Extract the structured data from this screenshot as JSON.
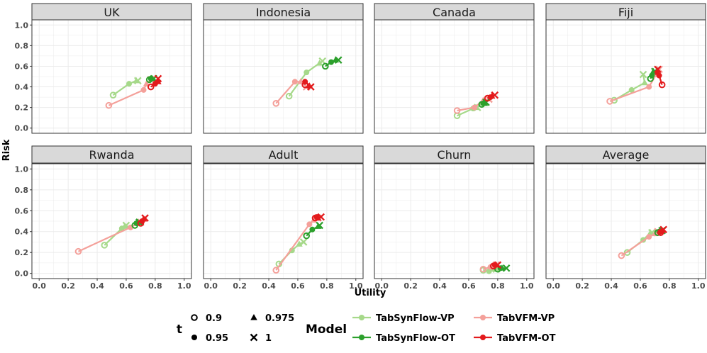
{
  "chart_data": {
    "type": "line",
    "xlabel": "Utility",
    "ylabel": "Risk",
    "xlim": [
      -0.05,
      1.05
    ],
    "ylim": [
      -0.05,
      1.05
    ],
    "x_ticks": [
      "0.0",
      "0.2",
      "0.4",
      "0.6",
      "0.8",
      "1.0"
    ],
    "y_ticks": [
      "0.0",
      "0.2",
      "0.4",
      "0.6",
      "0.8",
      "1.0"
    ],
    "t_values": [
      "0.9",
      "0.95",
      "0.975",
      "1"
    ],
    "legend": {
      "t_title": "t",
      "model_title": "Model",
      "t_entries": [
        {
          "label": "0.9",
          "shape": "open-circle"
        },
        {
          "label": "0.95",
          "shape": "filled-circle"
        },
        {
          "label": "0.975",
          "shape": "triangle"
        },
        {
          "label": "1",
          "shape": "cross"
        }
      ]
    },
    "series": [
      {
        "name": "TabSynFlow-VP",
        "color": "#a6d98a"
      },
      {
        "name": "TabVFM-VP",
        "color": "#f4a09a"
      },
      {
        "name": "TabSynFlow-OT",
        "color": "#2ca02c"
      },
      {
        "name": "TabVFM-OT",
        "color": "#e31a1c"
      }
    ],
    "panels": [
      {
        "title": "UK",
        "data": {
          "TabSynFlow-VP": [
            [
              0.51,
              0.32
            ],
            [
              0.62,
              0.43
            ],
            [
              0.67,
              0.46
            ],
            [
              0.68,
              0.46
            ]
          ],
          "TabVFM-VP": [
            [
              0.48,
              0.22
            ],
            [
              0.72,
              0.37
            ],
            [
              0.74,
              0.43
            ],
            [
              0.77,
              0.47
            ]
          ],
          "TabSynFlow-OT": [
            [
              0.76,
              0.47
            ],
            [
              0.77,
              0.48
            ],
            [
              0.78,
              0.48
            ],
            [
              0.79,
              0.48
            ]
          ],
          "TabVFM-OT": [
            [
              0.77,
              0.4
            ],
            [
              0.8,
              0.43
            ],
            [
              0.82,
              0.45
            ],
            [
              0.82,
              0.48
            ]
          ]
        }
      },
      {
        "title": "Indonesia",
        "data": {
          "TabSynFlow-VP": [
            [
              0.54,
              0.31
            ],
            [
              0.66,
              0.54
            ],
            [
              0.75,
              0.63
            ],
            [
              0.77,
              0.65
            ]
          ],
          "TabVFM-VP": [
            [
              0.45,
              0.24
            ],
            [
              0.58,
              0.45
            ],
            [
              0.62,
              0.45
            ],
            [
              0.66,
              0.4
            ]
          ],
          "TabSynFlow-OT": [
            [
              0.79,
              0.6
            ],
            [
              0.83,
              0.64
            ],
            [
              0.86,
              0.66
            ],
            [
              0.88,
              0.66
            ]
          ],
          "TabVFM-OT": [
            [
              0.65,
              0.42
            ],
            [
              0.65,
              0.45
            ],
            [
              0.68,
              0.41
            ],
            [
              0.69,
              0.4
            ]
          ]
        }
      },
      {
        "title": "Canada",
        "data": {
          "TabSynFlow-VP": [
            [
              0.52,
              0.12
            ],
            [
              0.63,
              0.19
            ],
            [
              0.65,
              0.2
            ],
            [
              0.66,
              0.2
            ]
          ],
          "TabVFM-VP": [
            [
              0.52,
              0.17
            ],
            [
              0.64,
              0.2
            ],
            [
              0.7,
              0.27
            ],
            [
              0.74,
              0.28
            ]
          ],
          "TabSynFlow-OT": [
            [
              0.69,
              0.23
            ],
            [
              0.7,
              0.24
            ],
            [
              0.71,
              0.24
            ],
            [
              0.72,
              0.25
            ]
          ],
          "TabVFM-OT": [
            [
              0.73,
              0.29
            ],
            [
              0.75,
              0.3
            ],
            [
              0.76,
              0.31
            ],
            [
              0.78,
              0.32
            ]
          ]
        }
      },
      {
        "title": "Fiji",
        "data": {
          "TabSynFlow-VP": [
            [
              0.42,
              0.27
            ],
            [
              0.54,
              0.37
            ],
            [
              0.63,
              0.44
            ],
            [
              0.62,
              0.52
            ]
          ],
          "TabVFM-VP": [
            [
              0.39,
              0.26
            ],
            [
              0.66,
              0.4
            ],
            [
              0.71,
              0.52
            ],
            [
              0.73,
              0.57
            ]
          ],
          "TabSynFlow-OT": [
            [
              0.67,
              0.48
            ],
            [
              0.68,
              0.51
            ],
            [
              0.69,
              0.55
            ],
            [
              0.7,
              0.55
            ]
          ],
          "TabVFM-OT": [
            [
              0.75,
              0.42
            ],
            [
              0.73,
              0.51
            ],
            [
              0.72,
              0.54
            ],
            [
              0.72,
              0.57
            ]
          ]
        }
      },
      {
        "title": "Rwanda",
        "data": {
          "TabSynFlow-VP": [
            [
              0.45,
              0.27
            ],
            [
              0.57,
              0.43
            ],
            [
              0.59,
              0.45
            ],
            [
              0.6,
              0.46
            ]
          ],
          "TabVFM-VP": [
            [
              0.27,
              0.21
            ],
            [
              0.63,
              0.44
            ],
            [
              0.68,
              0.48
            ],
            [
              0.7,
              0.49
            ]
          ],
          "TabSynFlow-OT": [
            [
              0.66,
              0.46
            ],
            [
              0.67,
              0.48
            ],
            [
              0.68,
              0.49
            ],
            [
              0.69,
              0.49
            ]
          ],
          "TabVFM-OT": [
            [
              0.7,
              0.48
            ],
            [
              0.71,
              0.5
            ],
            [
              0.72,
              0.52
            ],
            [
              0.73,
              0.53
            ]
          ]
        }
      },
      {
        "title": "Adult",
        "data": {
          "TabSynFlow-VP": [
            [
              0.47,
              0.09
            ],
            [
              0.56,
              0.22
            ],
            [
              0.61,
              0.28
            ],
            [
              0.64,
              0.3
            ]
          ],
          "TabVFM-VP": [
            [
              0.45,
              0.03
            ],
            [
              0.68,
              0.47
            ],
            [
              0.71,
              0.51
            ],
            [
              0.74,
              0.53
            ]
          ],
          "TabSynFlow-OT": [
            [
              0.66,
              0.36
            ],
            [
              0.7,
              0.42
            ],
            [
              0.74,
              0.45
            ],
            [
              0.75,
              0.46
            ]
          ],
          "TabVFM-OT": [
            [
              0.72,
              0.53
            ],
            [
              0.73,
              0.54
            ],
            [
              0.74,
              0.53
            ],
            [
              0.76,
              0.54
            ]
          ]
        }
      },
      {
        "title": "Churn",
        "data": {
          "TabSynFlow-VP": [
            [
              0.7,
              0.03
            ],
            [
              0.74,
              0.02
            ],
            [
              0.76,
              0.04
            ],
            [
              0.79,
              0.04
            ]
          ],
          "TabVFM-VP": [
            [
              0.7,
              0.04
            ],
            [
              0.75,
              0.06
            ],
            [
              0.77,
              0.08
            ],
            [
              0.79,
              0.08
            ]
          ],
          "TabSynFlow-OT": [
            [
              0.8,
              0.04
            ],
            [
              0.82,
              0.05
            ],
            [
              0.83,
              0.05
            ],
            [
              0.86,
              0.05
            ]
          ],
          "TabVFM-OT": [
            [
              0.77,
              0.07
            ],
            [
              0.78,
              0.08
            ],
            [
              0.79,
              0.08
            ],
            [
              0.8,
              0.08
            ]
          ]
        }
      },
      {
        "title": "Average",
        "data": {
          "TabSynFlow-VP": [
            [
              0.51,
              0.2
            ],
            [
              0.62,
              0.32
            ],
            [
              0.67,
              0.39
            ],
            [
              0.68,
              0.39
            ]
          ],
          "TabVFM-VP": [
            [
              0.47,
              0.17
            ],
            [
              0.66,
              0.35
            ],
            [
              0.7,
              0.38
            ],
            [
              0.72,
              0.4
            ]
          ],
          "TabSynFlow-OT": [
            [
              0.72,
              0.39
            ],
            [
              0.73,
              0.4
            ],
            [
              0.74,
              0.41
            ],
            [
              0.75,
              0.41
            ]
          ],
          "TabVFM-OT": [
            [
              0.74,
              0.39
            ],
            [
              0.74,
              0.4
            ],
            [
              0.75,
              0.41
            ],
            [
              0.76,
              0.42
            ]
          ]
        }
      }
    ]
  }
}
